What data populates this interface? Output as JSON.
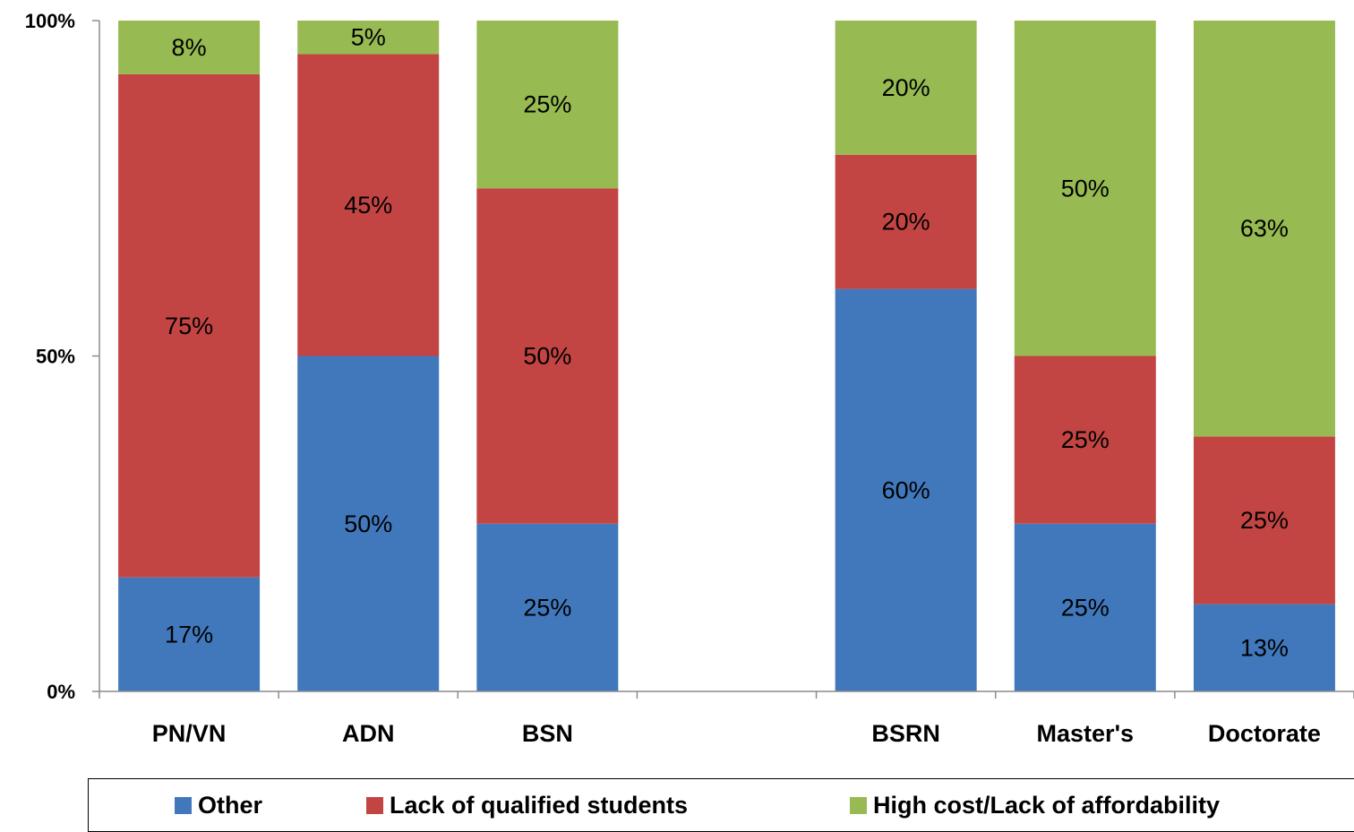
{
  "chart_data": {
    "type": "bar",
    "stacked": true,
    "categories": [
      "PN/VN",
      "ADN",
      "BSN",
      "",
      "BSRN",
      "Master's",
      "Doctorate"
    ],
    "series": [
      {
        "name": "Other",
        "color": "#4178bc",
        "values": [
          17,
          50,
          25,
          null,
          60,
          25,
          13
        ]
      },
      {
        "name": "Lack of qualified students",
        "color": "#c24543",
        "values": [
          75,
          45,
          50,
          null,
          20,
          25,
          25
        ]
      },
      {
        "name": "High cost/Lack of affordability",
        "color": "#97ba52",
        "values": [
          8,
          5,
          25,
          null,
          20,
          50,
          63
        ]
      }
    ],
    "data_labels": [
      [
        "17%",
        "50%",
        "25%",
        null,
        "60%",
        "25%",
        "13%"
      ],
      [
        "75%",
        "45%",
        "50%",
        null,
        "20%",
        "25%",
        "25%"
      ],
      [
        "8%",
        "5%",
        "25%",
        null,
        "20%",
        "50%",
        "63%"
      ]
    ],
    "y_ticks": [
      0,
      50,
      100
    ],
    "y_tick_labels": [
      "0%",
      "50%",
      "100%"
    ],
    "ylim": [
      0,
      100
    ],
    "grid": false,
    "legend_position": "bottom"
  }
}
